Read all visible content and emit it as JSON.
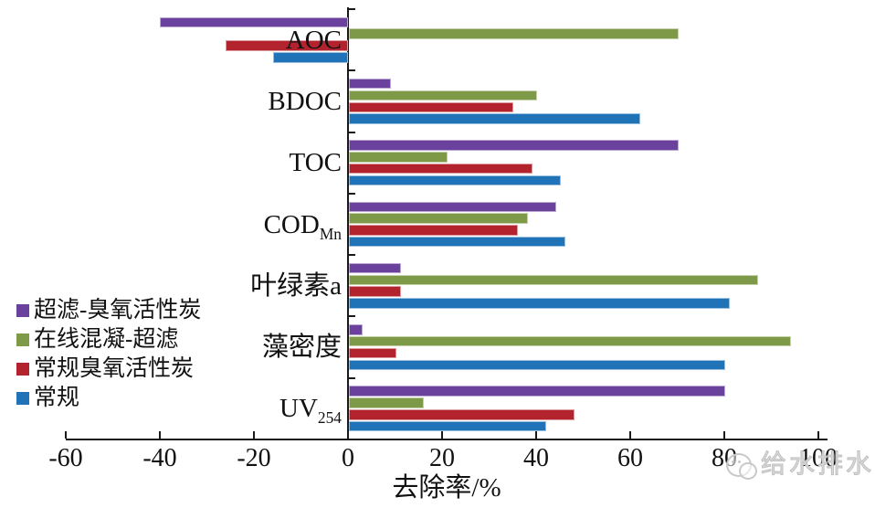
{
  "watermark": {
    "text": "给水排水",
    "icon": "wechat-bubbles-logo"
  },
  "chart_data": {
    "type": "bar",
    "orientation": "horizontal",
    "title": "",
    "xlabel": "去除率/%",
    "ylabel": "",
    "xlim": [
      -60,
      100
    ],
    "xticks": [
      -60,
      -40,
      -20,
      0,
      20,
      40,
      60,
      80,
      100
    ],
    "grid": false,
    "legend_position": "left-middle",
    "axis_color": "#1a1a1a",
    "bar_order_note": "series listed top-to-bottom within each category group; categories listed top-to-bottom",
    "categories": [
      {
        "text": "AOC",
        "sub": ""
      },
      {
        "text": "BDOC",
        "sub": ""
      },
      {
        "text": "TOC",
        "sub": ""
      },
      {
        "text": "COD",
        "sub": "Mn"
      },
      {
        "text": "叶绿素a",
        "sub": ""
      },
      {
        "text": "藻密度",
        "sub": ""
      },
      {
        "text": "UV",
        "sub": "254"
      }
    ],
    "series": [
      {
        "name": "超滤-臭氧活性炭",
        "color": "#6a419c",
        "values": [
          -40,
          9,
          70,
          44,
          11,
          3,
          80
        ]
      },
      {
        "name": "在线混凝-超滤",
        "color": "#7e9a48",
        "values": [
          70,
          40,
          21,
          38,
          87,
          94,
          16
        ]
      },
      {
        "name": "常规臭氧活性炭",
        "color": "#b2232e",
        "values": [
          -26,
          35,
          39,
          36,
          11,
          10,
          48
        ]
      },
      {
        "name": "常规",
        "color": "#2173b8",
        "values": [
          -16,
          62,
          45,
          46,
          81,
          80,
          42
        ]
      }
    ]
  }
}
